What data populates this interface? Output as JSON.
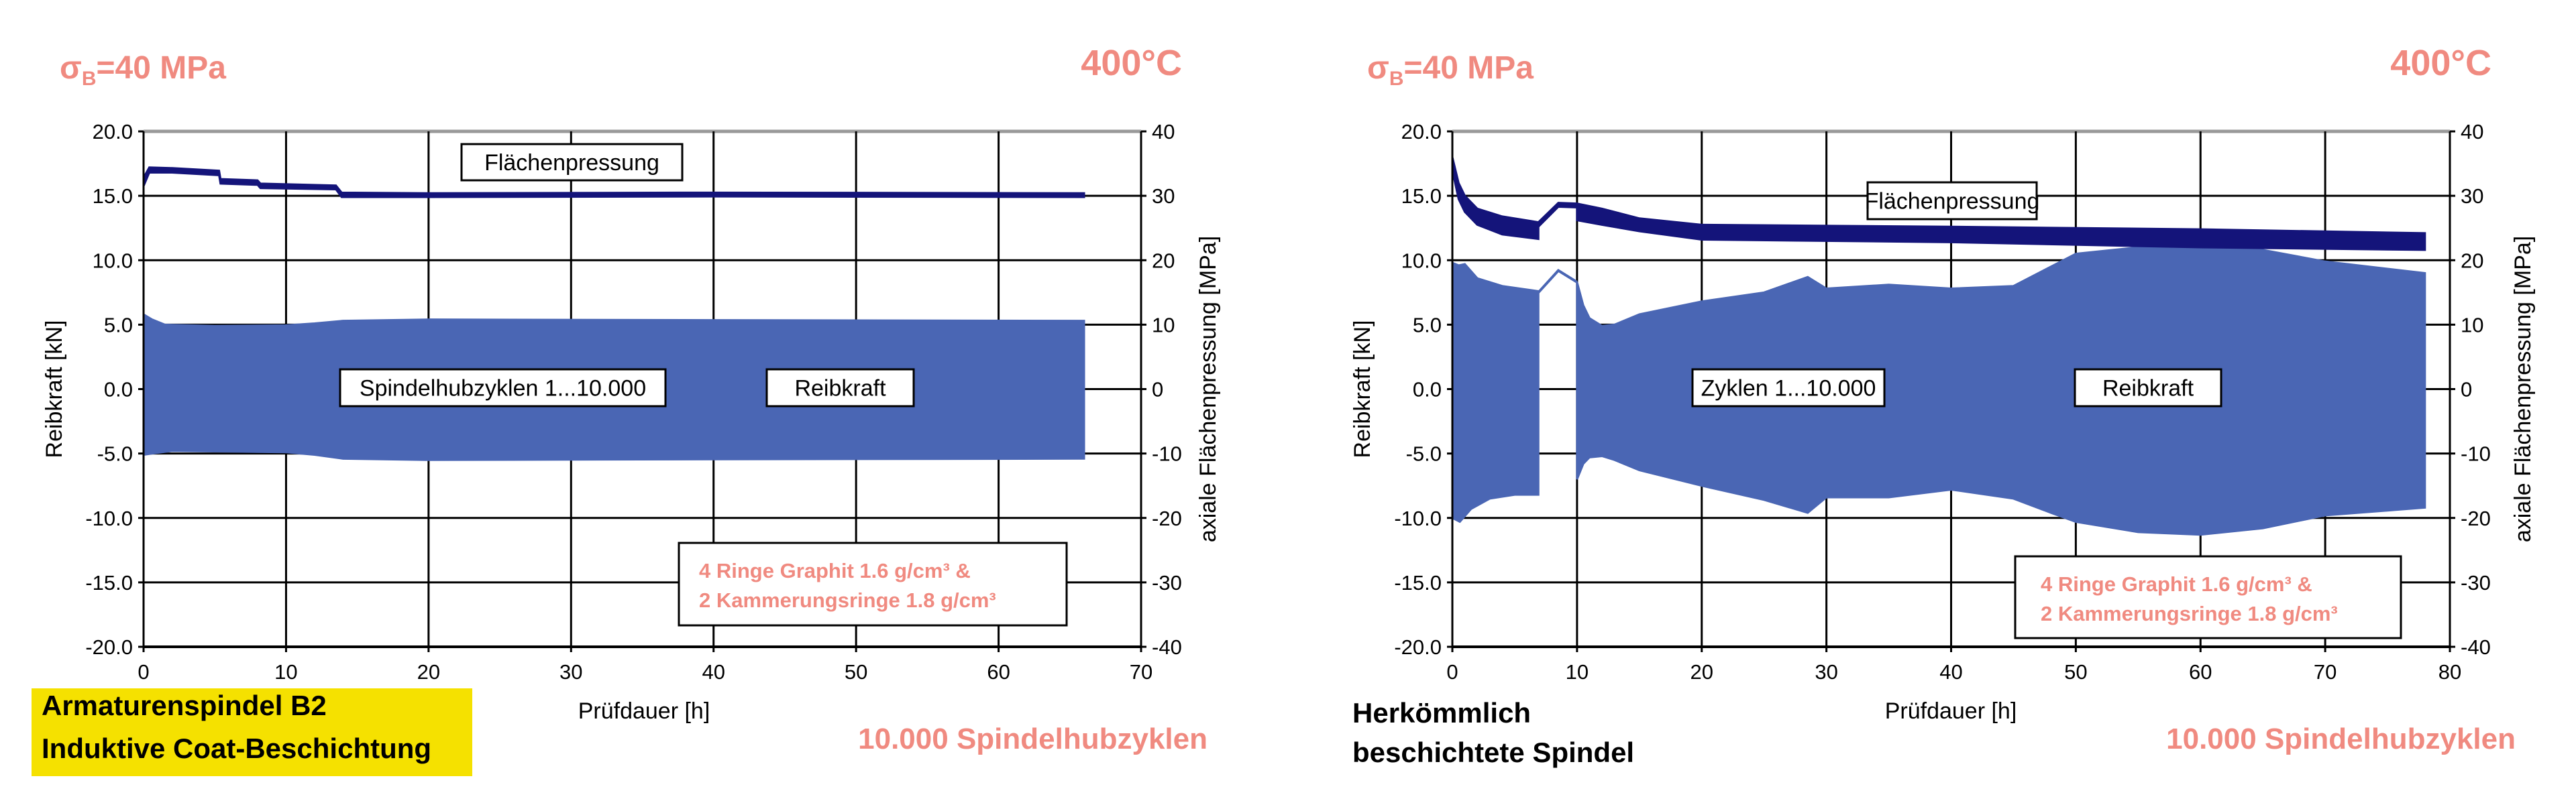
{
  "colors": {
    "reibkraft": "#4A66B4",
    "flaechenpressung": "#14147A",
    "accent": "#F08A80",
    "highlight": "#F5E100",
    "grid": "#000000",
    "top_border": "#999999"
  },
  "panels": [
    {
      "stress": {
        "symbol": "σ",
        "sub": "B",
        "rest": "=40 MPa"
      },
      "temperature": "400°C",
      "cycles_note": "10.000 Spindelhubzyklen",
      "caption_lines": [
        "Armaturenspindel B2",
        "Induktive Coat-Beschichtung"
      ],
      "caption_highlight": true
    },
    {
      "stress": {
        "symbol": "σ",
        "sub": "B",
        "rest": "=40 MPa"
      },
      "temperature": "400°C",
      "cycles_note": "10.000 Spindelhubzyklen",
      "caption_lines": [
        "Herkömmlich",
        "beschichtete Spindel"
      ],
      "caption_highlight": false
    }
  ],
  "chart_data": [
    {
      "type": "area",
      "xlabel": "Prüfdauer [h]",
      "ylabel": "Reibkraft [kN]",
      "y2label": "axiale Flächenpressung [MPa]",
      "xlim": [
        0,
        70
      ],
      "ylim": [
        -20,
        20
      ],
      "y2lim": [
        -40,
        40
      ],
      "xticks": [
        "0",
        "10",
        "20",
        "30",
        "40",
        "50",
        "60",
        "70"
      ],
      "yticks": [
        "20.0",
        "15.0",
        "10.0",
        "5.0",
        "0.0",
        "-5.0",
        "-10.0",
        "-15.0",
        "-20.0"
      ],
      "y2ticks": [
        "40",
        "30",
        "20",
        "10",
        "0",
        "-10",
        "-20",
        "-30",
        "-40"
      ],
      "grid": true,
      "annotations": {
        "pressure_label": "Flächenpressung",
        "cycles_label": "Spindelhubzyklen 1...10.000",
        "force_label": "Reibkraft",
        "legend_lines": [
          "4 Ringe Graphit  1.6  g/cm³ &",
          "2 Kammerungsringe 1.8 g/cm³"
        ]
      },
      "series": [
        {
          "name": "Reibkraft",
          "axis": "left",
          "segments": [
            {
              "upper": [
                [
                  0,
                  5.8
                ],
                [
                  0.6,
                  5.4
                ],
                [
                  1.5,
                  5.0
                ],
                [
                  5,
                  4.9
                ],
                [
                  10,
                  4.95
                ],
                [
                  12,
                  5.1
                ],
                [
                  14,
                  5.3
                ],
                [
                  20,
                  5.4
                ],
                [
                  40,
                  5.35
                ],
                [
                  66,
                  5.3
                ]
              ],
              "lower": [
                [
                  0,
                  -5.1
                ],
                [
                  0.6,
                  -5.0
                ],
                [
                  2,
                  -4.8
                ],
                [
                  10,
                  -4.9
                ],
                [
                  12,
                  -5.1
                ],
                [
                  14,
                  -5.4
                ],
                [
                  20,
                  -5.5
                ],
                [
                  40,
                  -5.45
                ],
                [
                  66,
                  -5.4
                ]
              ]
            }
          ]
        },
        {
          "name": "Flächenpressung",
          "axis": "right",
          "segments": [
            {
              "upper": [
                [
                  0,
                  32.8
                ],
                [
                  0.4,
                  34.4
                ],
                [
                  2,
                  34.3
                ],
                [
                  5.3,
                  33.9
                ],
                [
                  5.4,
                  32.6
                ],
                [
                  8,
                  32.4
                ],
                [
                  8.2,
                  31.9
                ],
                [
                  13.5,
                  31.6
                ],
                [
                  13.9,
                  30.5
                ],
                [
                  20,
                  30.4
                ],
                [
                  40,
                  30.5
                ],
                [
                  66,
                  30.4
                ]
              ],
              "lower": [
                [
                  0,
                  31.5
                ],
                [
                  0.4,
                  33.6
                ],
                [
                  2,
                  33.6
                ],
                [
                  5.3,
                  33.2
                ],
                [
                  5.4,
                  31.9
                ],
                [
                  8,
                  31.7
                ],
                [
                  8.2,
                  31.2
                ],
                [
                  13.5,
                  31.0
                ],
                [
                  13.9,
                  29.8
                ],
                [
                  20,
                  29.8
                ],
                [
                  40,
                  29.9
                ],
                [
                  66,
                  29.8
                ]
              ]
            }
          ]
        }
      ]
    },
    {
      "type": "area",
      "xlabel": "Prüfdauer [h]",
      "ylabel": "Reibkraft [kN]",
      "y2label": "axiale Flächenpressung [MPa]",
      "xlim": [
        0,
        80
      ],
      "ylim": [
        -20,
        20
      ],
      "y2lim": [
        -40,
        40
      ],
      "xticks": [
        "0",
        "10",
        "20",
        "30",
        "40",
        "50",
        "60",
        "70",
        "80"
      ],
      "yticks": [
        "20.0",
        "15.0",
        "10.0",
        "5.0",
        "0.0",
        "-5.0",
        "-10.0",
        "-15.0",
        "-20.0"
      ],
      "y2ticks": [
        "40",
        "30",
        "20",
        "10",
        "0",
        "-10",
        "-20",
        "-30",
        "-40"
      ],
      "grid": true,
      "annotations": {
        "pressure_label": "Flächenpressung",
        "cycles_label": "Zyklen 1...10.000",
        "force_label": "Reibkraft",
        "legend_lines": [
          "4 Ringe Graphit  1.6  g/cm³ &",
          "2 Kammerungsringe 1.8 g/cm³"
        ]
      },
      "series": [
        {
          "name": "Reibkraft",
          "axis": "left",
          "segments": [
            {
              "upper": [
                [
                  0,
                  9.8
                ],
                [
                  0.5,
                  9.6
                ],
                [
                  1,
                  9.7
                ],
                [
                  2,
                  8.6
                ],
                [
                  4,
                  8.0
                ],
                [
                  6.9,
                  7.6
                ]
              ],
              "lower": [
                [
                  0,
                  -10.0
                ],
                [
                  0.6,
                  -10.3
                ],
                [
                  1.5,
                  -9.3
                ],
                [
                  3,
                  -8.5
                ],
                [
                  5,
                  -8.2
                ],
                [
                  6.9,
                  -8.2
                ]
              ]
            },
            {
              "line": [
                [
                  6.9,
                  7.5
                ],
                [
                  8.5,
                  9.2
                ],
                [
                  10,
                  8.3
                ]
              ]
            },
            {
              "upper": [
                [
                  10,
                  8.3
                ],
                [
                  10.5,
                  6.5
                ],
                [
                  11,
                  5.5
                ],
                [
                  12,
                  4.9
                ],
                [
                  13,
                  5.0
                ],
                [
                  15,
                  5.8
                ],
                [
                  20,
                  6.8
                ],
                [
                  25,
                  7.5
                ],
                [
                  28.5,
                  8.7
                ],
                [
                  30,
                  7.8
                ],
                [
                  35,
                  8.1
                ],
                [
                  40,
                  7.8
                ],
                [
                  45,
                  8.0
                ],
                [
                  48,
                  9.5
                ],
                [
                  50,
                  10.5
                ],
                [
                  55,
                  11.0
                ],
                [
                  60,
                  11.0
                ],
                [
                  65,
                  10.8
                ],
                [
                  70,
                  9.9
                ],
                [
                  78,
                  9.0
                ]
              ],
              "lower": [
                [
                  10,
                  -7.0
                ],
                [
                  10.5,
                  -5.8
                ],
                [
                  11,
                  -5.3
                ],
                [
                  12,
                  -5.2
                ],
                [
                  13,
                  -5.5
                ],
                [
                  15,
                  -6.3
                ],
                [
                  20,
                  -7.5
                ],
                [
                  25,
                  -8.6
                ],
                [
                  28.5,
                  -9.6
                ],
                [
                  30,
                  -8.4
                ],
                [
                  35,
                  -8.4
                ],
                [
                  40,
                  -7.8
                ],
                [
                  45,
                  -8.5
                ],
                [
                  48,
                  -9.6
                ],
                [
                  50,
                  -10.3
                ],
                [
                  55,
                  -11.1
                ],
                [
                  60,
                  -11.3
                ],
                [
                  65,
                  -10.8
                ],
                [
                  70,
                  -9.8
                ],
                [
                  78,
                  -9.2
                ]
              ]
            }
          ]
        },
        {
          "name": "Flächenpressung",
          "axis": "right",
          "segments": [
            {
              "upper": [
                [
                  0,
                  36
                ],
                [
                  0.5,
                  32
                ],
                [
                  1,
                  30
                ],
                [
                  2,
                  28
                ],
                [
                  4,
                  26.8
                ],
                [
                  6.9,
                  25.9
                ]
              ],
              "lower": [
                [
                  0,
                  34
                ],
                [
                  0.5,
                  29.5
                ],
                [
                  1,
                  27.5
                ],
                [
                  2,
                  25.5
                ],
                [
                  4,
                  24
                ],
                [
                  6.9,
                  23.3
                ]
              ]
            },
            {
              "upper": [
                [
                  6.9,
                  25.9
                ],
                [
                  8.5,
                  28.9
                ],
                [
                  10,
                  28.8
                ]
              ],
              "lower": [
                [
                  6.9,
                  25.2
                ],
                [
                  8.5,
                  28.3
                ],
                [
                  10,
                  28.2
                ]
              ]
            },
            {
              "upper": [
                [
                  10,
                  28.8
                ],
                [
                  12,
                  28
                ],
                [
                  15,
                  26.5
                ],
                [
                  20,
                  25.5
                ],
                [
                  40,
                  25.2
                ],
                [
                  60,
                  24.8
                ],
                [
                  78,
                  24.2
                ]
              ],
              "lower": [
                [
                  10,
                  26.2
                ],
                [
                  12,
                  25.5
                ],
                [
                  15,
                  24.5
                ],
                [
                  20,
                  23.2
                ],
                [
                  40,
                  22.8
                ],
                [
                  60,
                  22.0
                ],
                [
                  78,
                  21.6
                ]
              ]
            }
          ]
        }
      ]
    }
  ]
}
